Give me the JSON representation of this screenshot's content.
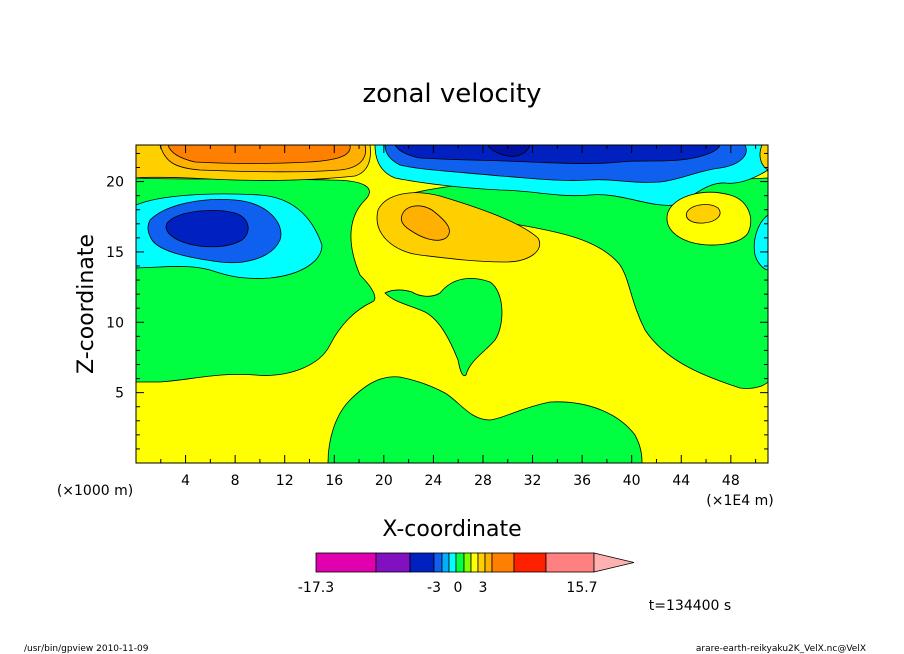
{
  "chart_data": {
    "type": "contour",
    "title": "zonal velocity",
    "xlabel": "X-coordinate",
    "ylabel": "Z-coordinate",
    "x_unit": "(×1E4 m)",
    "y_unit": "(×1000 m)",
    "x_ticks": [
      "4",
      "8",
      "12",
      "16",
      "20",
      "24",
      "28",
      "32",
      "36",
      "40",
      "44",
      "48"
    ],
    "y_ticks": [
      "5",
      "10",
      "15",
      "20"
    ],
    "xlim": [
      0,
      51
    ],
    "ylim": [
      0,
      22.6
    ],
    "colorbar": {
      "labels": [
        "-17.3",
        "-3",
        "0",
        "3",
        "15.7"
      ],
      "colors": [
        "#e000b0",
        "#8010c0",
        "#0020c0",
        "#1060f0",
        "#00b0ff",
        "#00ffff",
        "#00ff40",
        "#80ff00",
        "#ffff00",
        "#ffd000",
        "#ffb000",
        "#ff8000",
        "#ff2000",
        "#ff8080",
        "#ffb0b0"
      ]
    },
    "time_label": "t=134400 s"
  },
  "footer": {
    "left": "/usr/bin/gpview 2010-11-09",
    "right": "arare-earth-reikyaku2K_VelX.nc@VelX"
  }
}
